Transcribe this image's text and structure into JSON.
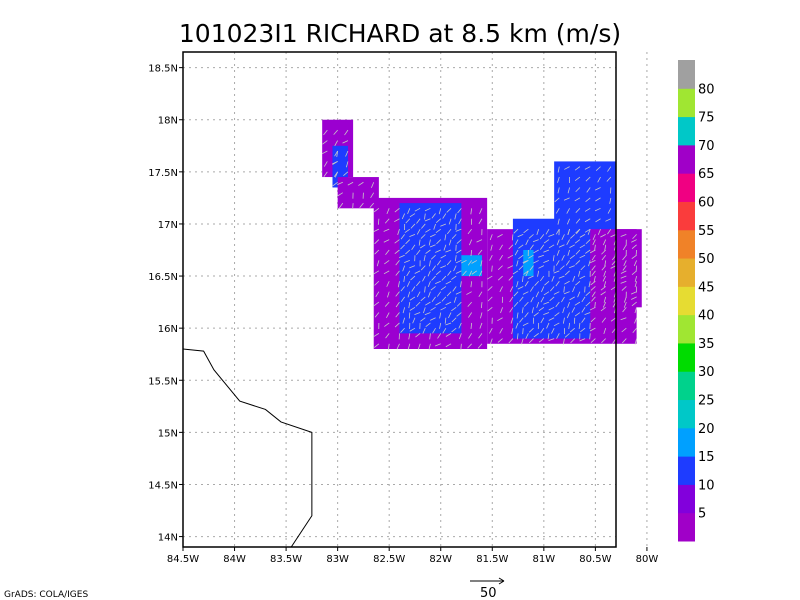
{
  "chart_data": {
    "type": "heatmap",
    "title": "101023I1 RICHARD at 8.5 km (m/s)",
    "x_ticks": [
      "84.5W",
      "84W",
      "83.5W",
      "83W",
      "82.5W",
      "82W",
      "81.5W",
      "81W",
      "80.5W",
      "80W"
    ],
    "y_ticks": [
      "14N",
      "14.5N",
      "15N",
      "15.5N",
      "16N",
      "16.5N",
      "17N",
      "17.5N",
      "18N",
      "18.5N"
    ],
    "xlim": [
      -84.5,
      -80.3
    ],
    "ylim": [
      13.9,
      18.65
    ],
    "grid": true,
    "colorbar": {
      "labels": [
        "5",
        "10",
        "15",
        "20",
        "25",
        "30",
        "35",
        "40",
        "45",
        "50",
        "55",
        "60",
        "65",
        "70",
        "75",
        "80"
      ],
      "colors": [
        "#a000c8",
        "#8200dc",
        "#1e3cff",
        "#00a0ff",
        "#00c8c8",
        "#00d28c",
        "#00dc00",
        "#a0e632",
        "#e6dc32",
        "#e6af2d",
        "#f08228",
        "#fa3c3c",
        "#f00082",
        "#a000c8",
        "#00c8c8",
        "#a0e632",
        "#a0a0a0"
      ]
    },
    "regions": [
      {
        "color": "#9b00d0",
        "lon": [
          -83.15,
          -82.85
        ],
        "lat": [
          17.45,
          18.0
        ]
      },
      {
        "color": "#1e3cff",
        "lon": [
          -83.05,
          -82.9
        ],
        "lat": [
          17.35,
          17.75
        ]
      },
      {
        "color": "#9b00d0",
        "lon": [
          -83.0,
          -82.6
        ],
        "lat": [
          17.15,
          17.45
        ]
      },
      {
        "color": "#9b00d0",
        "lon": [
          -82.65,
          -81.55
        ],
        "lat": [
          15.8,
          17.25
        ]
      },
      {
        "color": "#1e3cff",
        "lon": [
          -82.4,
          -81.8
        ],
        "lat": [
          15.95,
          17.2
        ]
      },
      {
        "color": "#00a0ff",
        "lon": [
          -81.8,
          -81.6
        ],
        "lat": [
          16.5,
          16.7
        ]
      },
      {
        "color": "#9b00d0",
        "lon": [
          -81.55,
          -80.1
        ],
        "lat": [
          15.85,
          16.95
        ]
      },
      {
        "color": "#1e3cff",
        "lon": [
          -81.3,
          -80.55
        ],
        "lat": [
          15.9,
          17.05
        ]
      },
      {
        "color": "#1e3cff",
        "lon": [
          -80.9,
          -80.3
        ],
        "lat": [
          16.9,
          17.6
        ]
      },
      {
        "color": "#00a0ff",
        "lon": [
          -81.2,
          -81.1
        ],
        "lat": [
          16.5,
          16.75
        ]
      },
      {
        "color": "#9b00d0",
        "lon": [
          -80.55,
          -80.05
        ],
        "lat": [
          16.2,
          16.95
        ]
      }
    ],
    "coastline": [
      [
        -84.5,
        15.8
      ],
      [
        -84.3,
        15.78
      ],
      [
        -84.2,
        15.6
      ],
      [
        -83.95,
        15.3
      ],
      [
        -83.7,
        15.22
      ],
      [
        -83.55,
        15.1
      ],
      [
        -83.25,
        15.0
      ],
      [
        -83.25,
        14.2
      ],
      [
        -83.45,
        13.9
      ]
    ]
  },
  "vector_scale_label": "50",
  "credit": "GrADS: COLA/IGES"
}
